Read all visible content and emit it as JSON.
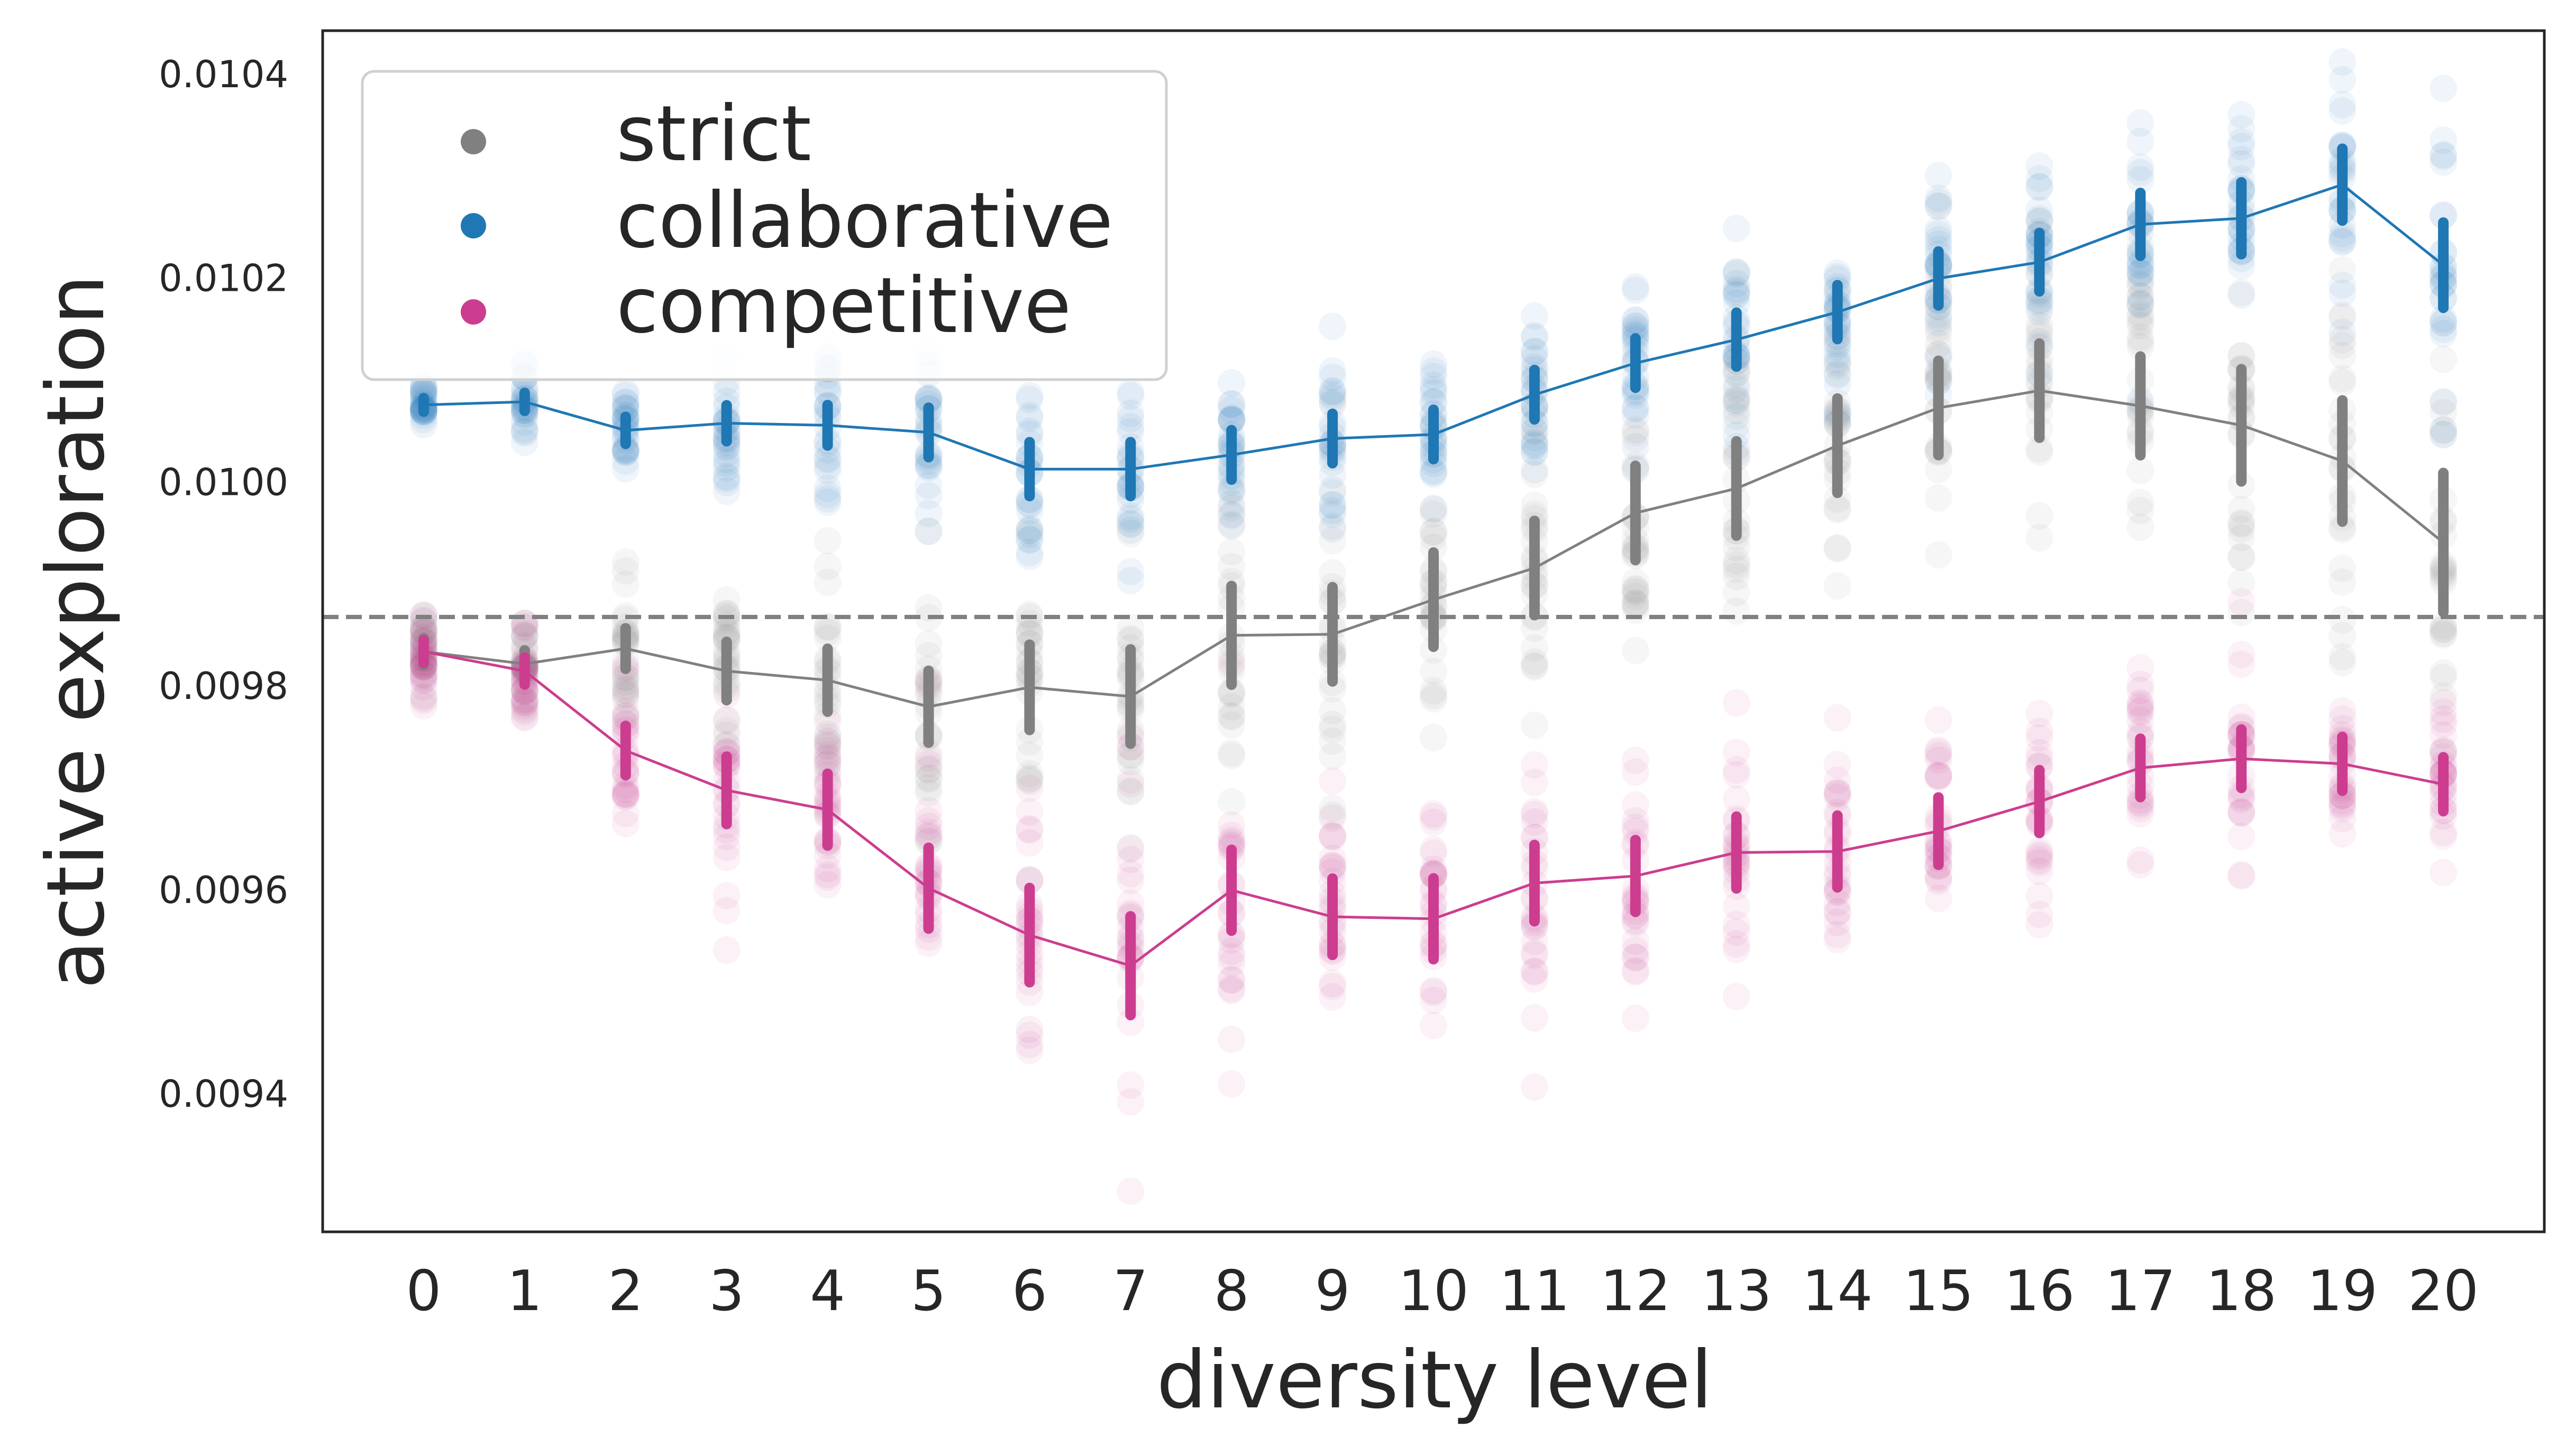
{
  "chart_data": {
    "type": "scatter",
    "xlabel": "diversity level",
    "ylabel": "active exploration",
    "x": [
      0,
      1,
      2,
      3,
      4,
      5,
      6,
      7,
      8,
      9,
      10,
      11,
      12,
      13,
      14,
      15,
      16,
      17,
      18,
      19,
      20
    ],
    "xlim": [
      -1,
      21
    ],
    "ylim": [
      0.009265,
      0.010443
    ],
    "yticks": [
      0.0094,
      0.0096,
      0.0098,
      0.01,
      0.0102,
      0.0104
    ],
    "ytick_labels": [
      "0.0094",
      "0.0096",
      "0.0098",
      "0.0100",
      "0.0102",
      "0.0104"
    ],
    "xtick_labels": [
      "0",
      "1",
      "2",
      "3",
      "4",
      "5",
      "6",
      "7",
      "8",
      "9",
      "10",
      "11",
      "12",
      "13",
      "14",
      "15",
      "16",
      "17",
      "18",
      "19",
      "20"
    ],
    "reference_line": {
      "y": 0.009868,
      "style": "dashed",
      "color": "#808080"
    },
    "grid": false,
    "legend_position": "top-left",
    "series": [
      {
        "name": "strict",
        "color": "#808080",
        "values": [
          0.009834,
          0.009822,
          0.009837,
          0.009815,
          0.009806,
          0.00978,
          0.009799,
          0.00979,
          0.00985,
          0.009851,
          0.009885,
          0.009916,
          0.00997,
          0.009994,
          0.010036,
          0.010073,
          0.01009,
          0.010075,
          0.010056,
          0.010021,
          0.009941
        ],
        "spread": [
          6e-05,
          6e-05,
          9e-05,
          0.00013,
          0.00014,
          0.00016,
          0.00019,
          0.00021,
          0.00022,
          0.00021,
          0.00021,
          0.00021,
          0.00021,
          0.00021,
          0.00021,
          0.00021,
          0.00021,
          0.00022,
          0.00025,
          0.00027,
          0.00031
        ]
      },
      {
        "name": "collaborative",
        "color": "#1f77b4",
        "values": [
          0.010076,
          0.010079,
          0.010051,
          0.010058,
          0.010056,
          0.010049,
          0.010013,
          0.010013,
          0.010027,
          0.010043,
          0.010047,
          0.010086,
          0.010117,
          0.01014,
          0.010167,
          0.0102,
          0.010216,
          0.010253,
          0.010259,
          0.010292,
          0.010213
        ],
        "spread": [
          3e-05,
          4e-05,
          6e-05,
          8e-05,
          9e-05,
          0.00011,
          0.00012,
          0.00012,
          0.00011,
          0.00011,
          0.00011,
          0.00011,
          0.00011,
          0.00012,
          0.00012,
          0.00012,
          0.00013,
          0.00014,
          0.00016,
          0.00016,
          0.00019
        ]
      },
      {
        "name": "competitive",
        "color": "#cc3d8f",
        "values": [
          0.009834,
          0.009815,
          0.009737,
          0.009698,
          0.009679,
          0.009602,
          0.009556,
          0.009526,
          0.0096,
          0.009574,
          0.009572,
          0.009607,
          0.009614,
          0.009637,
          0.009638,
          0.009658,
          0.009687,
          0.00972,
          0.009729,
          0.009724,
          0.009704
        ],
        "spread": [
          5e-05,
          6e-05,
          0.00011,
          0.00015,
          0.00016,
          0.00018,
          0.00021,
          0.00022,
          0.00018,
          0.00017,
          0.00018,
          0.00017,
          0.00016,
          0.00016,
          0.00016,
          0.00015,
          0.00014,
          0.00013,
          0.00013,
          0.00012,
          0.00012
        ]
      }
    ]
  }
}
